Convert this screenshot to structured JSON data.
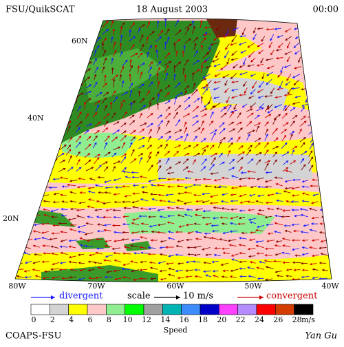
{
  "header": {
    "left": "FSU/QuikSCAT",
    "center": "18 August 2003",
    "right": "00:00"
  },
  "map": {
    "lat_labels": [
      "60N",
      "40N",
      "20N"
    ],
    "lon_labels": [
      "80W",
      "70W",
      "60W",
      "50W",
      "40W"
    ]
  },
  "legend": {
    "divergent": "divergent",
    "scale": "scale",
    "scale_value": "10 m/s",
    "convergent": "convergent",
    "divergent_color": "#1a1aff",
    "convergent_color": "#cc0000"
  },
  "colorbar": {
    "colors": [
      "#ffffff",
      "#d3d3d3",
      "#ffff00",
      "#ffc8c8",
      "#90ee90",
      "#00ff00",
      "#a0a0a0",
      "#00b4b4",
      "#3c8cff",
      "#0000c8",
      "#ff40ff",
      "#b48cff",
      "#ff0000",
      "#d23c00",
      "#000000"
    ],
    "labels": [
      0,
      2,
      4,
      6,
      8,
      10,
      12,
      14,
      16,
      18,
      20,
      22,
      24,
      26,
      28
    ],
    "unit": "m/s",
    "title": "Speed"
  },
  "footer": {
    "left": "COAPS-FSU",
    "right": "Yan Gu"
  }
}
